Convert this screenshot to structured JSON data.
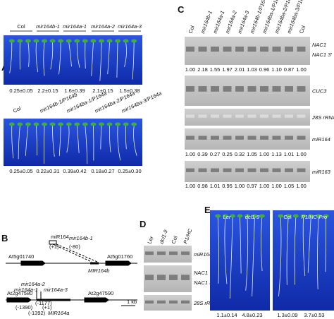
{
  "panel_labels": [
    "A",
    "B",
    "C",
    "D",
    "E"
  ],
  "panel_a": {
    "top": {
      "genotypes": [
        "Col",
        "mir164b-1",
        "mir164a-1",
        "mir164a-2",
        "mir164a-3"
      ],
      "values": [
        "0.25±0.05",
        "2.2±0.15",
        "1.6±0.39",
        "2.1±0.15",
        "1.5±0.38"
      ]
    },
    "bottom": {
      "genotypes": [
        "Col",
        "mir164b-1/P164b",
        "mir164ba-1/P164a",
        "mir164ba-2/P164a",
        "mir164ba-3/P164a"
      ],
      "values": [
        "0.25±0.05",
        "0.22±0.31",
        "0.39±0.42",
        "0.18±0.27",
        "0.25±0.30"
      ]
    }
  },
  "panel_b": {
    "items": [
      "miR164",
      "(+1)",
      "mir164b-1",
      "(-80)",
      "At5g01740",
      "At5g01760",
      "MIR164b",
      "mir164a-2",
      "mir164a-1",
      "mir164a-3",
      "At2g47580",
      "At2g47590",
      "(-1390)",
      "(-1392)",
      "(-1177)",
      "(+1)",
      "MIR164a",
      "1 kb"
    ]
  },
  "panel_c": {
    "lanes": [
      "Col",
      "mir164b-1",
      "mir164a-1",
      "mir164a-2",
      "mir164a-3",
      "mir164b-1/P164b",
      "mir164ba-1/P164a",
      "mir164ba-2/P164a",
      "mir164ba-3/P164a",
      "Col"
    ],
    "blots": [
      {
        "labels": [
          "NAC1",
          "NAC1 3′"
        ],
        "values": [
          "1.00",
          "2.18",
          "1.55",
          "1.97",
          "2.01",
          "1.03",
          "0.96",
          "1.10",
          "0.87",
          "1.00"
        ]
      },
      {
        "labels": [
          "CUC3"
        ]
      },
      {
        "labels": [
          "28S rRNA"
        ]
      },
      {
        "labels": [
          "miR164"
        ],
        "values": [
          "1.00",
          "0.39",
          "0.27",
          "0.25",
          "0.32",
          "1.05",
          "1.00",
          "1.13",
          "1.01",
          "1.00"
        ]
      },
      {
        "labels": [
          "miR163"
        ],
        "values": [
          "1.00",
          "0.98",
          "1.01",
          "0.95",
          "1.00",
          "0.97",
          "1.00",
          "1.00",
          "1.05",
          "1.00"
        ]
      }
    ]
  },
  "panel_d": {
    "lanes": [
      "Ler",
      "dcl1-9",
      "Col",
      "P1/HC"
    ],
    "blots": [
      {
        "labels": [
          "miR164"
        ]
      },
      {
        "labels": [
          "NAC1",
          "NAC1 3′"
        ]
      },
      {
        "labels": [
          "28S rRNA"
        ]
      }
    ]
  },
  "panel_e": {
    "genotypes": [
      "Ler",
      "dcl1-9",
      "Col",
      "P1/HC-Pro"
    ],
    "values": [
      "1.1±0.14",
      "4.8±0.23",
      "1.3±0.09",
      "3.7±0.53"
    ]
  }
}
